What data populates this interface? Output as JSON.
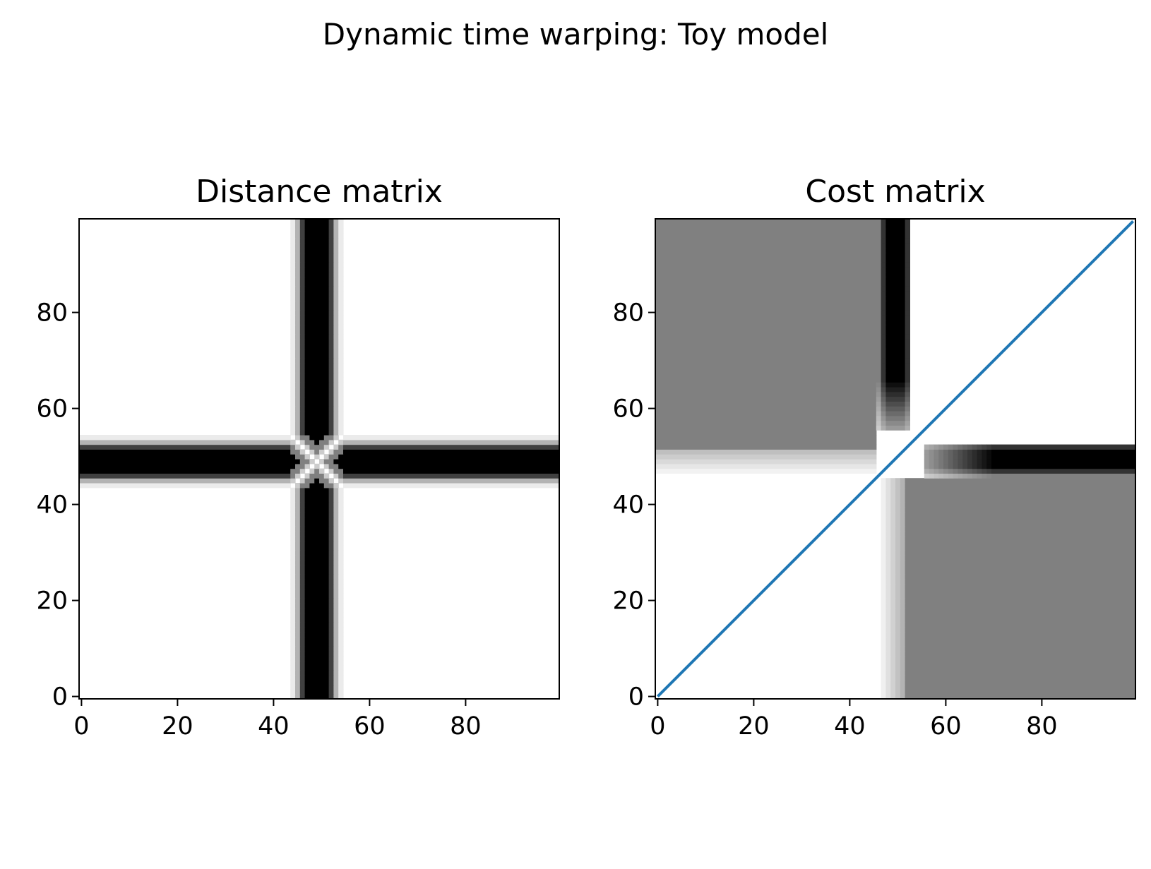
{
  "figure": {
    "suptitle": "Dynamic time warping: Toy model"
  },
  "chart_data": [
    {
      "type": "heatmap",
      "title": "Distance matrix",
      "xlabel": "",
      "ylabel": "",
      "xlim": [
        -0.5,
        99.5
      ],
      "ylim": [
        -0.5,
        99.5
      ],
      "xticks": [
        0,
        20,
        40,
        60,
        80
      ],
      "yticks": [
        0,
        20,
        40,
        60,
        80
      ],
      "colormap": "grayscale (low = white, high = black)",
      "grid": false,
      "description_values": {
        "dark_band_column_center": 49,
        "dark_band_row_center": 49,
        "band_halfwidth": 4,
        "crossing_point": [
          49,
          49
        ]
      }
    },
    {
      "type": "heatmap",
      "title": "Cost matrix",
      "xlabel": "",
      "ylabel": "",
      "xlim": [
        -0.5,
        99.5
      ],
      "ylim": [
        -0.5,
        99.5
      ],
      "xticks": [
        0,
        20,
        40,
        60,
        80
      ],
      "yticks": [
        0,
        20,
        40,
        60,
        80
      ],
      "colormap": "grayscale (low = white, high = black)",
      "grid": false,
      "regions": {
        "upper_left_gray": {
          "x": [
            0,
            46
          ],
          "y": [
            51,
            99
          ],
          "level": 0.5
        },
        "lower_right_gray": {
          "x": [
            51,
            99
          ],
          "y": [
            0,
            46
          ],
          "level": 0.5
        },
        "dark_vertical_band": {
          "x": [
            47,
            52
          ],
          "y": [
            58,
            99
          ]
        },
        "dark_horizontal_band": {
          "x": [
            58,
            99
          ],
          "y": [
            47,
            52
          ]
        }
      },
      "series": [
        {
          "type": "line",
          "color": "#1f77b4",
          "x": [
            0,
            99
          ],
          "y": [
            0,
            99
          ]
        }
      ]
    }
  ]
}
